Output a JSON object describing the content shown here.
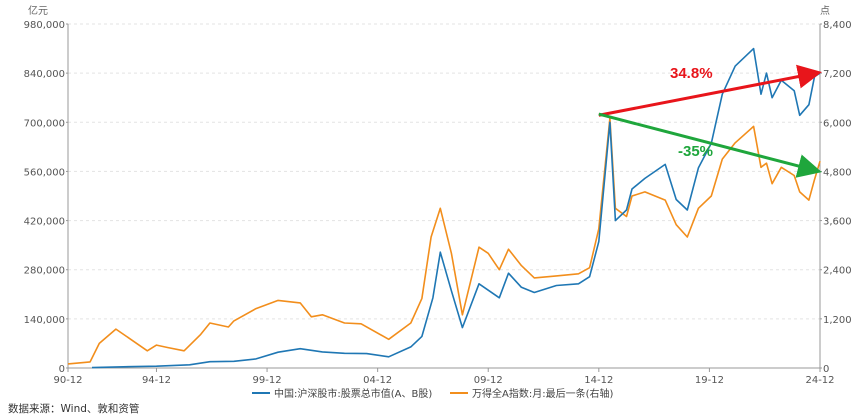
{
  "chart_data": {
    "type": "line",
    "left_axis_unit": "亿元",
    "right_axis_unit": "点",
    "x_ticks": [
      "90-12",
      "94-12",
      "99-12",
      "04-12",
      "09-12",
      "14-12",
      "19-12",
      "24-12"
    ],
    "left_axis": {
      "ylim": [
        0,
        980000
      ],
      "ticks": [
        "0",
        "140,000",
        "280,000",
        "420,000",
        "560,000",
        "700,000",
        "840,000",
        "980,000"
      ]
    },
    "right_axis": {
      "ylim": [
        0,
        8400
      ],
      "ticks": [
        "0",
        "1,200",
        "2,400",
        "3,600",
        "4,800",
        "6,000",
        "7,200",
        "8,400"
      ]
    },
    "series": [
      {
        "name": "中国:沪深股市:股票总市值(A、B股)",
        "axis": "left",
        "color": "#1f77b4",
        "points": [
          [
            "1992-01",
            1000
          ],
          [
            "1993-06",
            3500
          ],
          [
            "1994-12",
            5000
          ],
          [
            "1996-06",
            9000
          ],
          [
            "1997-05",
            18000
          ],
          [
            "1998-06",
            19000
          ],
          [
            "1999-06",
            26000
          ],
          [
            "2000-06",
            45000
          ],
          [
            "2001-06",
            55000
          ],
          [
            "2002-06",
            46000
          ],
          [
            "2003-06",
            42000
          ],
          [
            "2004-06",
            41000
          ],
          [
            "2005-06",
            32000
          ],
          [
            "2006-06",
            60000
          ],
          [
            "2006-12",
            90000
          ],
          [
            "2007-06",
            200000
          ],
          [
            "2007-10",
            330000
          ],
          [
            "2008-04",
            220000
          ],
          [
            "2008-10",
            115000
          ],
          [
            "2009-07",
            240000
          ],
          [
            "2010-06",
            200000
          ],
          [
            "2010-11",
            270000
          ],
          [
            "2011-06",
            230000
          ],
          [
            "2012-01",
            215000
          ],
          [
            "2013-01",
            235000
          ],
          [
            "2014-01",
            240000
          ],
          [
            "2014-07",
            260000
          ],
          [
            "2014-12",
            360000
          ],
          [
            "2015-06",
            700000
          ],
          [
            "2015-09",
            420000
          ],
          [
            "2016-03",
            450000
          ],
          [
            "2016-06",
            510000
          ],
          [
            "2017-01",
            540000
          ],
          [
            "2017-12",
            580000
          ],
          [
            "2018-06",
            480000
          ],
          [
            "2018-12",
            450000
          ],
          [
            "2019-06",
            570000
          ],
          [
            "2020-01",
            640000
          ],
          [
            "2020-07",
            780000
          ],
          [
            "2021-02",
            860000
          ],
          [
            "2021-12",
            910000
          ],
          [
            "2022-04",
            780000
          ],
          [
            "2022-07",
            840000
          ],
          [
            "2022-10",
            770000
          ],
          [
            "2023-03",
            820000
          ],
          [
            "2023-10",
            790000
          ],
          [
            "2024-01",
            720000
          ],
          [
            "2024-06",
            750000
          ],
          [
            "2024-09",
            830000
          ],
          [
            "2024-12",
            840000
          ]
        ]
      },
      {
        "name": "万得全A指数:月:最后一条(右轴)",
        "axis": "right",
        "color": "#f28e1c",
        "points": [
          [
            "1990-12",
            100
          ],
          [
            "1991-12",
            150
          ],
          [
            "1992-05",
            600
          ],
          [
            "1993-02",
            950
          ],
          [
            "1994-07",
            420
          ],
          [
            "1994-12",
            560
          ],
          [
            "1995-06",
            500
          ],
          [
            "1996-03",
            420
          ],
          [
            "1996-12",
            820
          ],
          [
            "1997-05",
            1100
          ],
          [
            "1998-03",
            1000
          ],
          [
            "1998-06",
            1150
          ],
          [
            "1999-06",
            1450
          ],
          [
            "2000-06",
            1650
          ],
          [
            "2001-06",
            1590
          ],
          [
            "2001-12",
            1250
          ],
          [
            "2002-06",
            1300
          ],
          [
            "2003-06",
            1100
          ],
          [
            "2004-03",
            1080
          ],
          [
            "2005-06",
            700
          ],
          [
            "2006-06",
            1100
          ],
          [
            "2006-12",
            1700
          ],
          [
            "2007-05",
            3200
          ],
          [
            "2007-10",
            3900
          ],
          [
            "2008-04",
            2800
          ],
          [
            "2008-10",
            1300
          ],
          [
            "2009-07",
            2950
          ],
          [
            "2009-12",
            2800
          ],
          [
            "2010-06",
            2400
          ],
          [
            "2010-11",
            2900
          ],
          [
            "2011-06",
            2500
          ],
          [
            "2012-01",
            2200
          ],
          [
            "2013-01",
            2250
          ],
          [
            "2014-01",
            2300
          ],
          [
            "2014-07",
            2450
          ],
          [
            "2014-12",
            3400
          ],
          [
            "2015-06",
            6100
          ],
          [
            "2015-09",
            3900
          ],
          [
            "2016-03",
            3700
          ],
          [
            "2016-06",
            4200
          ],
          [
            "2017-01",
            4300
          ],
          [
            "2017-12",
            4100
          ],
          [
            "2018-06",
            3500
          ],
          [
            "2018-12",
            3200
          ],
          [
            "2019-06",
            3900
          ],
          [
            "2020-01",
            4200
          ],
          [
            "2020-07",
            5100
          ],
          [
            "2021-02",
            5500
          ],
          [
            "2021-12",
            5900
          ],
          [
            "2022-04",
            4900
          ],
          [
            "2022-07",
            5000
          ],
          [
            "2022-10",
            4500
          ],
          [
            "2023-03",
            4900
          ],
          [
            "2023-10",
            4700
          ],
          [
            "2024-01",
            4300
          ],
          [
            "2024-06",
            4100
          ],
          [
            "2024-09",
            4600
          ],
          [
            "2024-12",
            5050
          ]
        ]
      }
    ],
    "annotations": [
      {
        "text": "34.8%",
        "color": "#e8151b",
        "from": [
          "2014-12",
          720000
        ],
        "to": [
          "2024-12",
          840000
        ]
      },
      {
        "text": "-35%",
        "color": "#1fa63c",
        "from": [
          "2014-12",
          6200
        ],
        "to": [
          "2024-12",
          4820
        ]
      }
    ],
    "grid": true
  },
  "source_text": "数据来源：Wind、敦和资管"
}
